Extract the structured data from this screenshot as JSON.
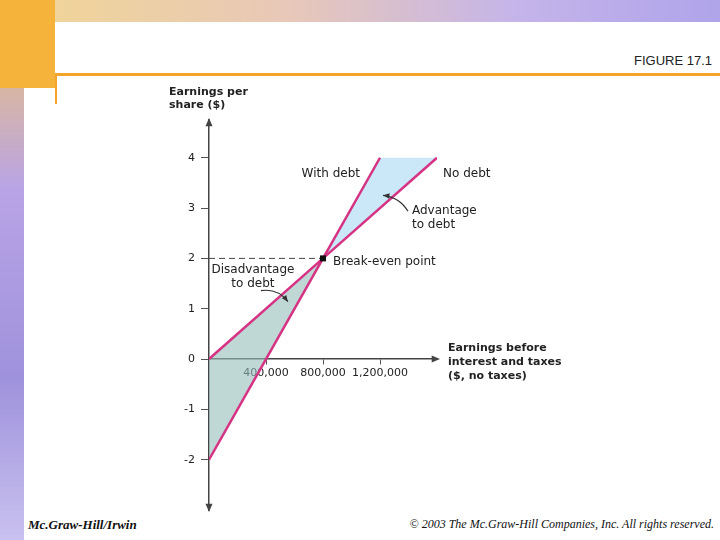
{
  "chart_data": {
    "type": "line",
    "figure_label": "FIGURE 17.1",
    "y_label": "Earnings per\nshare ($)",
    "x_label": "Earnings before\ninterest and taxes\n($, no taxes)",
    "xlim": [
      0,
      1600000
    ],
    "xticks": [
      {
        "value": 400000,
        "label": "400,000"
      },
      {
        "value": 800000,
        "label": "800,000"
      },
      {
        "value": 1200000,
        "label": "1,200,000"
      }
    ],
    "ylim": [
      -3,
      4.75
    ],
    "yticks": [
      -2,
      -1,
      0,
      1,
      2,
      3,
      4
    ],
    "grid": false,
    "series": [
      {
        "name": "With debt",
        "color": "#d63384",
        "x": [
          0,
          400000,
          800000,
          1200000
        ],
        "values": [
          -2,
          0,
          2,
          4
        ]
      },
      {
        "name": "No debt",
        "color": "#d63384",
        "x": [
          0,
          800000,
          1600000
        ],
        "values": [
          0,
          2,
          4
        ]
      }
    ],
    "break_even": {
      "label": "Break-even point",
      "x": 800000,
      "y": 2
    },
    "advantage_label": "Advantage\nto debt",
    "disadvantage_label": "Disadvantage\nto debt",
    "footer_left": "Mc.Graw-Hill/Irwin",
    "footer_right": "© 2003 The Mc.Graw-Hill Companies, Inc. All rights reserved."
  }
}
